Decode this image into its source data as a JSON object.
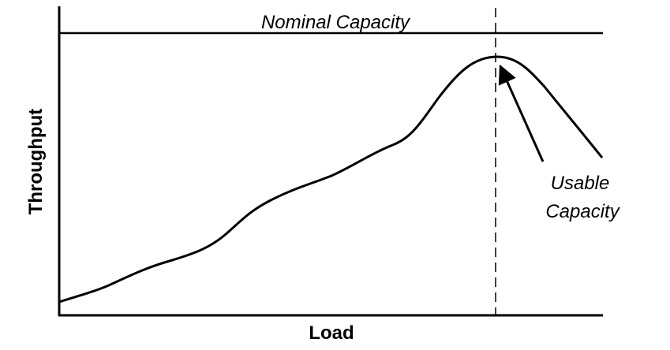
{
  "title": "Nominal Capacity",
  "y_axis_label": "Throughput",
  "x_axis_label": "Load",
  "annotation": {
    "lines": [
      "Usable",
      "Capacity"
    ]
  }
}
